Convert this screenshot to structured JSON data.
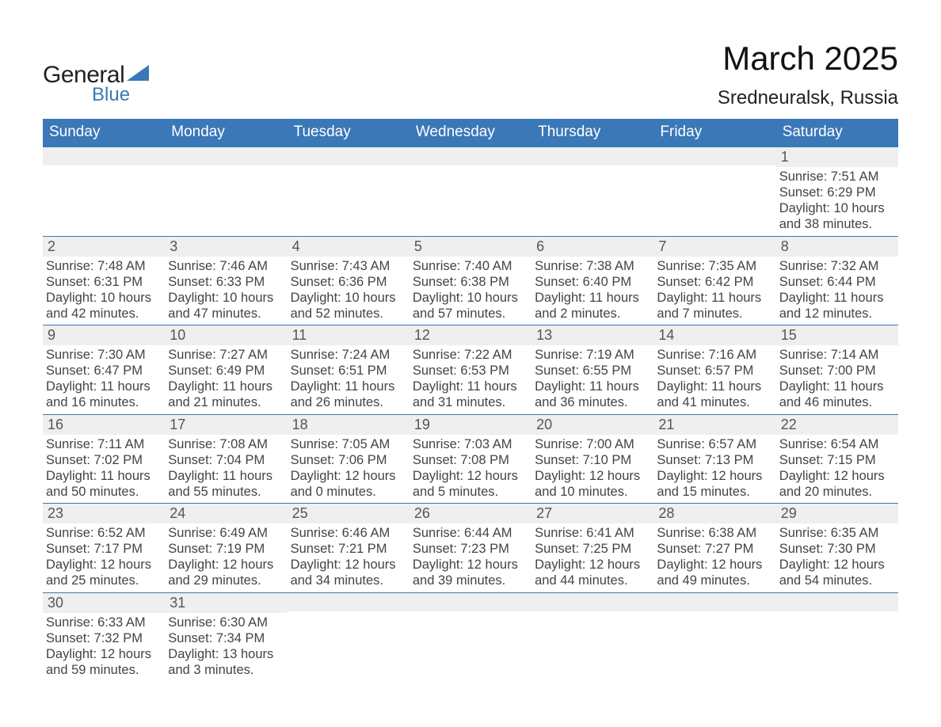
{
  "logo": {
    "main": "General",
    "sub": "Blue",
    "accent_color": "#3a78b8"
  },
  "title": "March 2025",
  "location": "Sredneuralsk, Russia",
  "day_names": [
    "Sunday",
    "Monday",
    "Tuesday",
    "Wednesday",
    "Thursday",
    "Friday",
    "Saturday"
  ],
  "colors": {
    "header_bg": "#3a78b8",
    "header_fg": "#ffffff",
    "daynum_bg": "#efefef",
    "daynum_border": "#3a78b8",
    "text": "#444444"
  },
  "weeks": [
    [
      {
        "n": "",
        "sunrise": "",
        "sunset": "",
        "dl1": "",
        "dl2": ""
      },
      {
        "n": "",
        "sunrise": "",
        "sunset": "",
        "dl1": "",
        "dl2": ""
      },
      {
        "n": "",
        "sunrise": "",
        "sunset": "",
        "dl1": "",
        "dl2": ""
      },
      {
        "n": "",
        "sunrise": "",
        "sunset": "",
        "dl1": "",
        "dl2": ""
      },
      {
        "n": "",
        "sunrise": "",
        "sunset": "",
        "dl1": "",
        "dl2": ""
      },
      {
        "n": "",
        "sunrise": "",
        "sunset": "",
        "dl1": "",
        "dl2": ""
      },
      {
        "n": "1",
        "sunrise": "Sunrise: 7:51 AM",
        "sunset": "Sunset: 6:29 PM",
        "dl1": "Daylight: 10 hours",
        "dl2": "and 38 minutes."
      }
    ],
    [
      {
        "n": "2",
        "sunrise": "Sunrise: 7:48 AM",
        "sunset": "Sunset: 6:31 PM",
        "dl1": "Daylight: 10 hours",
        "dl2": "and 42 minutes."
      },
      {
        "n": "3",
        "sunrise": "Sunrise: 7:46 AM",
        "sunset": "Sunset: 6:33 PM",
        "dl1": "Daylight: 10 hours",
        "dl2": "and 47 minutes."
      },
      {
        "n": "4",
        "sunrise": "Sunrise: 7:43 AM",
        "sunset": "Sunset: 6:36 PM",
        "dl1": "Daylight: 10 hours",
        "dl2": "and 52 minutes."
      },
      {
        "n": "5",
        "sunrise": "Sunrise: 7:40 AM",
        "sunset": "Sunset: 6:38 PM",
        "dl1": "Daylight: 10 hours",
        "dl2": "and 57 minutes."
      },
      {
        "n": "6",
        "sunrise": "Sunrise: 7:38 AM",
        "sunset": "Sunset: 6:40 PM",
        "dl1": "Daylight: 11 hours",
        "dl2": "and 2 minutes."
      },
      {
        "n": "7",
        "sunrise": "Sunrise: 7:35 AM",
        "sunset": "Sunset: 6:42 PM",
        "dl1": "Daylight: 11 hours",
        "dl2": "and 7 minutes."
      },
      {
        "n": "8",
        "sunrise": "Sunrise: 7:32 AM",
        "sunset": "Sunset: 6:44 PM",
        "dl1": "Daylight: 11 hours",
        "dl2": "and 12 minutes."
      }
    ],
    [
      {
        "n": "9",
        "sunrise": "Sunrise: 7:30 AM",
        "sunset": "Sunset: 6:47 PM",
        "dl1": "Daylight: 11 hours",
        "dl2": "and 16 minutes."
      },
      {
        "n": "10",
        "sunrise": "Sunrise: 7:27 AM",
        "sunset": "Sunset: 6:49 PM",
        "dl1": "Daylight: 11 hours",
        "dl2": "and 21 minutes."
      },
      {
        "n": "11",
        "sunrise": "Sunrise: 7:24 AM",
        "sunset": "Sunset: 6:51 PM",
        "dl1": "Daylight: 11 hours",
        "dl2": "and 26 minutes."
      },
      {
        "n": "12",
        "sunrise": "Sunrise: 7:22 AM",
        "sunset": "Sunset: 6:53 PM",
        "dl1": "Daylight: 11 hours",
        "dl2": "and 31 minutes."
      },
      {
        "n": "13",
        "sunrise": "Sunrise: 7:19 AM",
        "sunset": "Sunset: 6:55 PM",
        "dl1": "Daylight: 11 hours",
        "dl2": "and 36 minutes."
      },
      {
        "n": "14",
        "sunrise": "Sunrise: 7:16 AM",
        "sunset": "Sunset: 6:57 PM",
        "dl1": "Daylight: 11 hours",
        "dl2": "and 41 minutes."
      },
      {
        "n": "15",
        "sunrise": "Sunrise: 7:14 AM",
        "sunset": "Sunset: 7:00 PM",
        "dl1": "Daylight: 11 hours",
        "dl2": "and 46 minutes."
      }
    ],
    [
      {
        "n": "16",
        "sunrise": "Sunrise: 7:11 AM",
        "sunset": "Sunset: 7:02 PM",
        "dl1": "Daylight: 11 hours",
        "dl2": "and 50 minutes."
      },
      {
        "n": "17",
        "sunrise": "Sunrise: 7:08 AM",
        "sunset": "Sunset: 7:04 PM",
        "dl1": "Daylight: 11 hours",
        "dl2": "and 55 minutes."
      },
      {
        "n": "18",
        "sunrise": "Sunrise: 7:05 AM",
        "sunset": "Sunset: 7:06 PM",
        "dl1": "Daylight: 12 hours",
        "dl2": "and 0 minutes."
      },
      {
        "n": "19",
        "sunrise": "Sunrise: 7:03 AM",
        "sunset": "Sunset: 7:08 PM",
        "dl1": "Daylight: 12 hours",
        "dl2": "and 5 minutes."
      },
      {
        "n": "20",
        "sunrise": "Sunrise: 7:00 AM",
        "sunset": "Sunset: 7:10 PM",
        "dl1": "Daylight: 12 hours",
        "dl2": "and 10 minutes."
      },
      {
        "n": "21",
        "sunrise": "Sunrise: 6:57 AM",
        "sunset": "Sunset: 7:13 PM",
        "dl1": "Daylight: 12 hours",
        "dl2": "and 15 minutes."
      },
      {
        "n": "22",
        "sunrise": "Sunrise: 6:54 AM",
        "sunset": "Sunset: 7:15 PM",
        "dl1": "Daylight: 12 hours",
        "dl2": "and 20 minutes."
      }
    ],
    [
      {
        "n": "23",
        "sunrise": "Sunrise: 6:52 AM",
        "sunset": "Sunset: 7:17 PM",
        "dl1": "Daylight: 12 hours",
        "dl2": "and 25 minutes."
      },
      {
        "n": "24",
        "sunrise": "Sunrise: 6:49 AM",
        "sunset": "Sunset: 7:19 PM",
        "dl1": "Daylight: 12 hours",
        "dl2": "and 29 minutes."
      },
      {
        "n": "25",
        "sunrise": "Sunrise: 6:46 AM",
        "sunset": "Sunset: 7:21 PM",
        "dl1": "Daylight: 12 hours",
        "dl2": "and 34 minutes."
      },
      {
        "n": "26",
        "sunrise": "Sunrise: 6:44 AM",
        "sunset": "Sunset: 7:23 PM",
        "dl1": "Daylight: 12 hours",
        "dl2": "and 39 minutes."
      },
      {
        "n": "27",
        "sunrise": "Sunrise: 6:41 AM",
        "sunset": "Sunset: 7:25 PM",
        "dl1": "Daylight: 12 hours",
        "dl2": "and 44 minutes."
      },
      {
        "n": "28",
        "sunrise": "Sunrise: 6:38 AM",
        "sunset": "Sunset: 7:27 PM",
        "dl1": "Daylight: 12 hours",
        "dl2": "and 49 minutes."
      },
      {
        "n": "29",
        "sunrise": "Sunrise: 6:35 AM",
        "sunset": "Sunset: 7:30 PM",
        "dl1": "Daylight: 12 hours",
        "dl2": "and 54 minutes."
      }
    ],
    [
      {
        "n": "30",
        "sunrise": "Sunrise: 6:33 AM",
        "sunset": "Sunset: 7:32 PM",
        "dl1": "Daylight: 12 hours",
        "dl2": "and 59 minutes."
      },
      {
        "n": "31",
        "sunrise": "Sunrise: 6:30 AM",
        "sunset": "Sunset: 7:34 PM",
        "dl1": "Daylight: 13 hours",
        "dl2": "and 3 minutes."
      },
      {
        "n": "",
        "sunrise": "",
        "sunset": "",
        "dl1": "",
        "dl2": ""
      },
      {
        "n": "",
        "sunrise": "",
        "sunset": "",
        "dl1": "",
        "dl2": ""
      },
      {
        "n": "",
        "sunrise": "",
        "sunset": "",
        "dl1": "",
        "dl2": ""
      },
      {
        "n": "",
        "sunrise": "",
        "sunset": "",
        "dl1": "",
        "dl2": ""
      },
      {
        "n": "",
        "sunrise": "",
        "sunset": "",
        "dl1": "",
        "dl2": ""
      }
    ]
  ]
}
